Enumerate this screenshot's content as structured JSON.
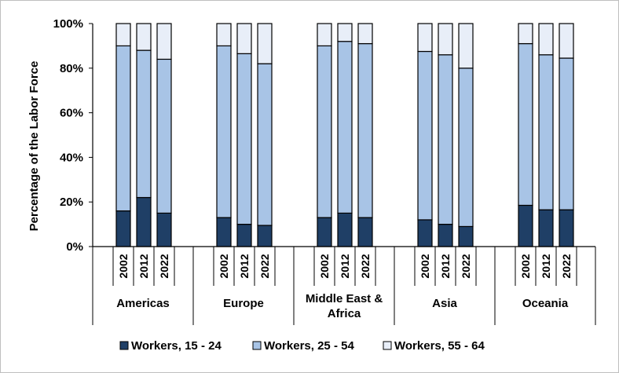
{
  "chart_data": {
    "type": "bar",
    "stacked": true,
    "title": "",
    "ylabel": "Percentage of the Labor Force",
    "xlabel": "",
    "ylim": [
      0,
      100
    ],
    "yticks": [
      "0%",
      "20%",
      "40%",
      "60%",
      "80%",
      "100%"
    ],
    "grid": false,
    "legend_position": "bottom",
    "groups": [
      {
        "name": "Americas",
        "years": [
          "2002",
          "2012",
          "2022"
        ]
      },
      {
        "name": "Europe",
        "years": [
          "2002",
          "2012",
          "2022"
        ]
      },
      {
        "name": "Middle East & Africa",
        "years": [
          "2002",
          "2012",
          "2022"
        ]
      },
      {
        "name": "Asia",
        "years": [
          "2002",
          "2012",
          "2022"
        ]
      },
      {
        "name": "Oceania",
        "years": [
          "2002",
          "2012",
          "2022"
        ]
      }
    ],
    "series": [
      {
        "name": "Workers, 15 - 24",
        "color": "#1f3f66",
        "values": [
          16,
          22,
          15,
          13,
          10,
          9.5,
          13,
          15,
          13,
          12,
          10,
          9,
          18.5,
          16.5,
          16.5
        ]
      },
      {
        "name": "Workers, 25 - 54",
        "color": "#a8c4e6",
        "values": [
          74,
          66,
          69,
          77,
          76.5,
          72.5,
          77,
          77,
          78,
          75.5,
          76,
          71,
          72.5,
          69.5,
          68
        ]
      },
      {
        "name": "Workers, 55 - 64",
        "color": "#e8eef8",
        "values": [
          10,
          12,
          16,
          10,
          13.5,
          18,
          10,
          8,
          9,
          12.5,
          14,
          20,
          9,
          14,
          15.5
        ]
      }
    ]
  }
}
